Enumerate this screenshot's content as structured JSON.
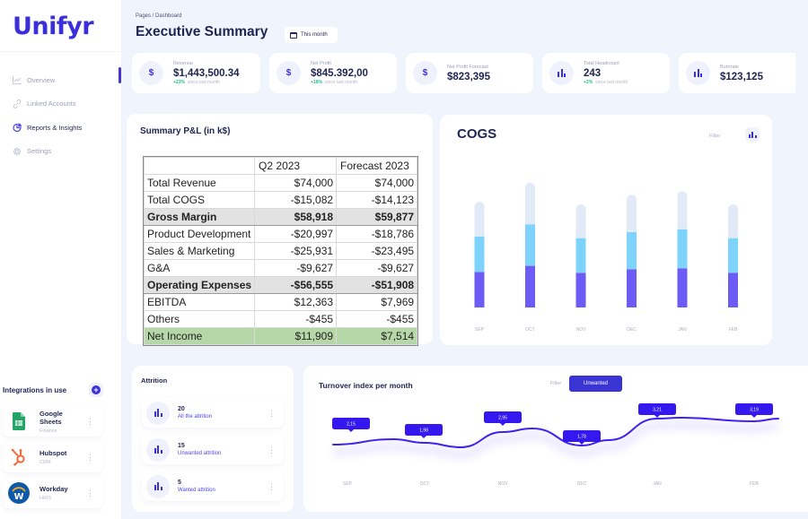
{
  "app": {
    "logo": "Unifyr"
  },
  "sidebar": {
    "items": [
      {
        "label": "Overview",
        "icon": "line-chart-icon",
        "active": false
      },
      {
        "label": "Linked Accounts",
        "icon": "link-icon",
        "active": false
      },
      {
        "label": "Reports & Insights",
        "icon": "pie-chart-icon",
        "active": true
      },
      {
        "label": "Settings",
        "icon": "gear-icon",
        "active": false
      }
    ]
  },
  "integrations": {
    "title": "Integrations in use",
    "add_label": "+",
    "items": [
      {
        "name": "Google Sheets",
        "category": "Finance",
        "icon": "google-sheets-icon"
      },
      {
        "name": "Hubspot",
        "category": "CRM",
        "icon": "hubspot-icon"
      },
      {
        "name": "Workday",
        "category": "HRIS",
        "icon": "workday-icon"
      }
    ]
  },
  "header": {
    "breadcrumb": "Pages / Dashboard",
    "title": "Executive Summary",
    "period": "This month"
  },
  "kpis": [
    {
      "label": "Revenue",
      "value": "$1,443,500.34",
      "delta": "+23%",
      "delta_note": "since last month",
      "icon": "dollar-icon"
    },
    {
      "label": "Net Profit",
      "value": "$845.392,00",
      "delta": "+18%",
      "delta_note": "since last month",
      "icon": "dollar-icon"
    },
    {
      "label": "Net Profit Forecast",
      "value": "$823,395",
      "delta": "",
      "delta_note": "",
      "icon": "dollar-icon"
    },
    {
      "label": "Total Headcount",
      "value": "243",
      "delta": "+3%",
      "delta_note": "since last month",
      "icon": "bar-chart-icon"
    },
    {
      "label": "Burnrate",
      "value": "$123,125",
      "delta": "",
      "delta_note": "",
      "icon": "bar-chart-icon"
    }
  ],
  "pl": {
    "title": "Summary P&L (in k$)",
    "columns": [
      "",
      "Q2 2023",
      "Forecast 2023"
    ],
    "rows": [
      {
        "label": "Total Revenue",
        "q2": "$74,000",
        "fc": "$74,000",
        "style": "normal"
      },
      {
        "label": "Total COGS",
        "q2": "-$15,082",
        "fc": "-$14,123",
        "style": "normal"
      },
      {
        "label": "Gross Margin",
        "q2": "$58,918",
        "fc": "$59,877",
        "style": "sub"
      },
      {
        "label": "Product Development",
        "q2": "-$20,997",
        "fc": "-$18,786",
        "style": "normal"
      },
      {
        "label": "Sales & Marketing",
        "q2": "-$25,931",
        "fc": "-$23,495",
        "style": "normal"
      },
      {
        "label": "G&A",
        "q2": "-$9,627",
        "fc": "-$9,627",
        "style": "normal"
      },
      {
        "label": "Operating Expenses",
        "q2": "-$56,555",
        "fc": "-$51,908",
        "style": "sub"
      },
      {
        "label": "EBITDA",
        "q2": "$12,363",
        "fc": "$7,969",
        "style": "normal"
      },
      {
        "label": "Others",
        "q2": "-$455",
        "fc": "-$455",
        "style": "normal"
      },
      {
        "label": "Net Income",
        "q2": "$11,909",
        "fc": "$7,514",
        "style": "net"
      }
    ]
  },
  "cogs": {
    "title": "COGS",
    "filter_label": "Filter",
    "colors": {
      "bottom": "#6d5bf6",
      "middle": "#7dd3fb",
      "top": "#e3eaf7"
    }
  },
  "attrition": {
    "title": "Attrition",
    "items": [
      {
        "value": "20",
        "label": "All the attrition"
      },
      {
        "value": "15",
        "label": "Unwanted attrition"
      },
      {
        "value": "5",
        "label": "Wanted attrition"
      }
    ]
  },
  "turnover": {
    "title": "Turnover index per month",
    "filter_label": "Filter",
    "segment": "Unwanted",
    "line_color": "#3d22f0"
  },
  "chart_data": [
    {
      "type": "bar",
      "title": "COGS",
      "stacked": true,
      "categories": [
        "SEP",
        "OCT",
        "NOV",
        "DEC",
        "JAN",
        "FEB"
      ],
      "series": [
        {
          "name": "Segment 1",
          "values": [
            41,
            48,
            40,
            44,
            45,
            40
          ]
        },
        {
          "name": "Segment 2",
          "values": [
            41,
            48,
            40,
            43,
            45,
            40
          ]
        },
        {
          "name": "Segment 3",
          "values": [
            40,
            48,
            39,
            43,
            44,
            39
          ]
        }
      ],
      "ylim": [
        0,
        150
      ],
      "grid": false
    },
    {
      "type": "line",
      "title": "Turnover index per month",
      "categories": [
        "SEP",
        "OCT",
        "NOV",
        "DEC",
        "JAN",
        "FEB"
      ],
      "values": [
        2.15,
        1.98,
        2.95,
        1.78,
        3.21,
        3.19
      ],
      "labels": [
        "2,15",
        "1,98",
        "2,95",
        "1,78",
        "3,21",
        "3,19"
      ],
      "ylim": [
        0,
        5
      ],
      "grid": false
    }
  ]
}
